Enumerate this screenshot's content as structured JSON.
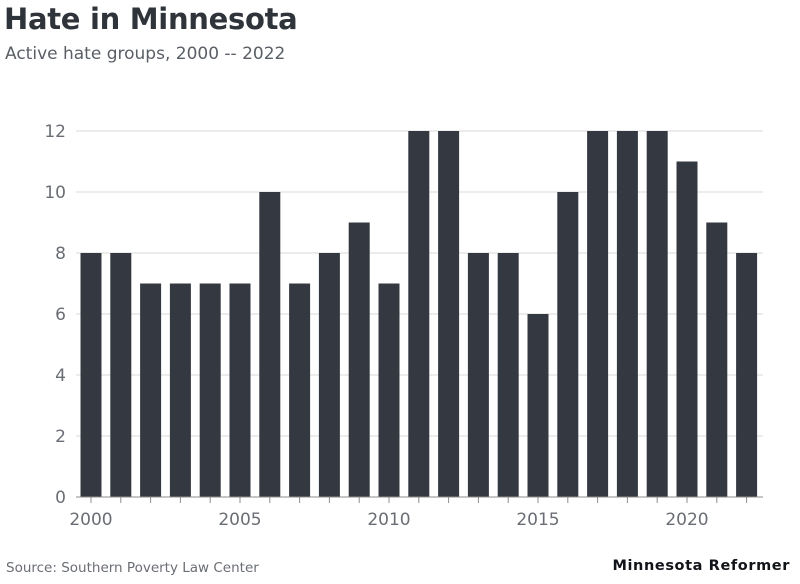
{
  "header": {
    "title": "Hate in Minnesota",
    "subtitle": "Active hate groups, 2000 -- 2022"
  },
  "footer": {
    "source": "Source: Southern Poverty Law Center",
    "brand": "Minnesota Reformer"
  },
  "colors": {
    "bar": "#343841",
    "grid": "#dadada",
    "axis": "#8c8c8c"
  },
  "chart_data": {
    "type": "bar",
    "title": "Hate in Minnesota",
    "subtitle": "Active hate groups, 2000 -- 2022",
    "categories": [
      2000,
      2001,
      2002,
      2003,
      2004,
      2005,
      2006,
      2007,
      2008,
      2009,
      2010,
      2011,
      2012,
      2013,
      2014,
      2015,
      2016,
      2017,
      2018,
      2019,
      2020,
      2021,
      2022
    ],
    "values": [
      8,
      8,
      7,
      7,
      7,
      7,
      10,
      7,
      8,
      9,
      7,
      12,
      12,
      8,
      8,
      6,
      10,
      12,
      12,
      12,
      11,
      9,
      8
    ],
    "ylim": [
      0,
      12
    ],
    "yticks": [
      0,
      2,
      4,
      6,
      8,
      10,
      12
    ],
    "xtick_labels": [
      "2000",
      "2005",
      "2010",
      "2015",
      "2020"
    ],
    "grid": true,
    "xlabel": "",
    "ylabel": ""
  }
}
